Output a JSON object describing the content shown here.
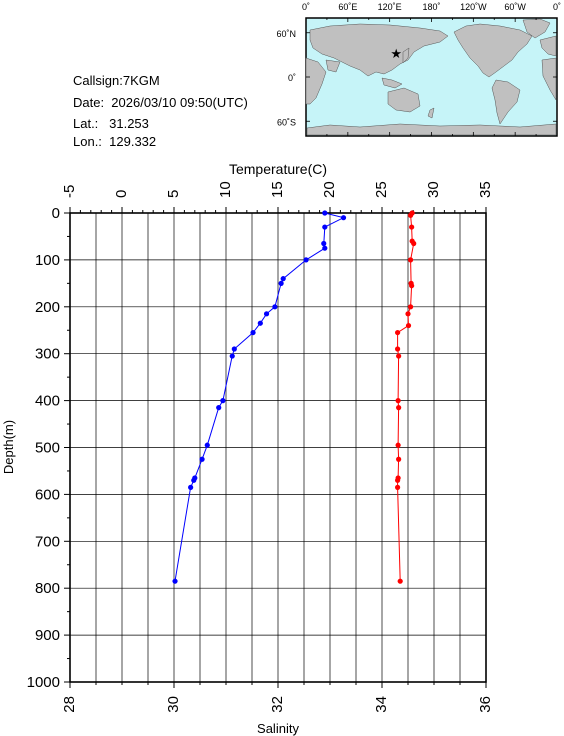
{
  "station": {
    "callsign": "Callsign:7KGM",
    "date": "Date:  2026/03/10 09:50(UTC)",
    "lat": "Lat.:   31.253",
    "lon": "Lon.:  129.332"
  },
  "map": {
    "lon_labels": [
      "0˚",
      "60˚E",
      "120˚E",
      "180˚",
      "120˚W",
      "60˚W",
      "0˚"
    ],
    "lat_labels": [
      "60˚N",
      "0˚",
      "60˚S"
    ],
    "marker_lon": 129.332,
    "marker_lat": 31.253,
    "ocean_color": "#c6f4f8",
    "land_color": "#c0c0c0",
    "marker_color": "#ff0000"
  },
  "chart_data": {
    "type": "line",
    "ylabel": "Depth(m)",
    "top_axis_label": "Temperature(C)",
    "bottom_axis_label": "Salinity",
    "depth_range": [
      0,
      1000
    ],
    "depth_ticks": [
      0,
      100,
      200,
      300,
      400,
      500,
      600,
      700,
      800,
      900,
      1000
    ],
    "temperature_range": [
      -5,
      35
    ],
    "temperature_ticks": [
      -5,
      0,
      5,
      10,
      15,
      20,
      25,
      30,
      35
    ],
    "salinity_range": [
      28,
      36
    ],
    "salinity_ticks": [
      28,
      30,
      32,
      34,
      36
    ],
    "grid": true,
    "series": [
      {
        "axis": "temperature",
        "color": "#0000ff",
        "depth": [
          0,
          10,
          30,
          65,
          75,
          100,
          140,
          150,
          200,
          215,
          235,
          255,
          290,
          305,
          400,
          415,
          495,
          525,
          565,
          570,
          585,
          785
        ],
        "temperature": [
          19.5,
          21.3,
          19.5,
          19.4,
          19.5,
          17.7,
          15.5,
          15.3,
          14.7,
          13.9,
          13.3,
          12.6,
          10.8,
          10.6,
          9.7,
          9.3,
          8.2,
          7.7,
          7.0,
          6.9,
          6.6,
          5.1
        ]
      },
      {
        "axis": "salinity",
        "color": "#ff0000",
        "depth": [
          0,
          5,
          30,
          60,
          65,
          100,
          150,
          155,
          200,
          215,
          240,
          255,
          290,
          305,
          400,
          415,
          495,
          525,
          565,
          570,
          585,
          785
        ],
        "salinity": [
          34.58,
          34.55,
          34.57,
          34.58,
          34.61,
          34.55,
          34.56,
          34.57,
          34.55,
          34.5,
          34.51,
          34.3,
          34.3,
          34.32,
          34.31,
          34.32,
          34.31,
          34.32,
          34.31,
          34.3,
          34.3,
          34.35
        ]
      }
    ]
  }
}
